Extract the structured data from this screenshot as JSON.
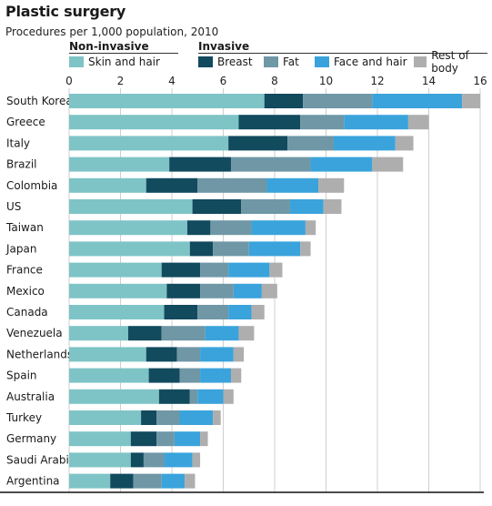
{
  "title": "Plastic surgery",
  "subtitle": "Procedures per 1,000 population, 2010",
  "legend": {
    "groups": [
      {
        "label": "Non-invasive",
        "items": [
          0
        ]
      },
      {
        "label": "Invasive",
        "items": [
          1,
          2,
          3,
          4
        ]
      }
    ]
  },
  "chart_data": {
    "type": "bar",
    "orientation": "horizontal",
    "stacked": true,
    "categories": [
      "South Korea",
      "Greece",
      "Italy",
      "Brazil",
      "Colombia",
      "US",
      "Taiwan",
      "Japan",
      "France",
      "Mexico",
      "Canada",
      "Venezuela",
      "Netherlands",
      "Spain",
      "Australia",
      "Turkey",
      "Germany",
      "Saudi Arabia",
      "Argentina"
    ],
    "series": [
      {
        "name": "Skin and hair",
        "color": "#7ec4c6",
        "values": [
          7.6,
          6.6,
          6.2,
          3.9,
          3.0,
          4.8,
          4.6,
          4.7,
          3.6,
          3.8,
          3.7,
          2.3,
          3.0,
          3.1,
          3.5,
          2.8,
          2.4,
          2.4,
          1.6
        ]
      },
      {
        "name": "Breast",
        "color": "#124a5e",
        "values": [
          1.5,
          2.4,
          2.3,
          2.4,
          2.0,
          1.9,
          0.9,
          0.9,
          1.5,
          1.3,
          1.3,
          1.3,
          1.2,
          1.2,
          1.2,
          0.6,
          1.0,
          0.5,
          0.9
        ]
      },
      {
        "name": "Fat",
        "color": "#6f97a6",
        "values": [
          2.7,
          1.7,
          1.8,
          3.1,
          2.7,
          1.9,
          1.6,
          1.4,
          1.1,
          1.3,
          1.2,
          1.7,
          0.9,
          0.8,
          0.3,
          0.9,
          0.7,
          0.8,
          1.1
        ]
      },
      {
        "name": "Face and hair",
        "color": "#3aa3dc",
        "values": [
          3.5,
          2.5,
          2.4,
          2.4,
          2.0,
          1.3,
          2.1,
          2.0,
          1.6,
          1.1,
          0.9,
          1.3,
          1.3,
          1.2,
          1.0,
          1.3,
          1.0,
          1.1,
          0.9
        ]
      },
      {
        "name": "Rest of body",
        "color": "#aeaeae",
        "values": [
          0.7,
          0.8,
          0.7,
          1.2,
          1.0,
          0.7,
          0.4,
          0.4,
          0.5,
          0.6,
          0.5,
          0.6,
          0.4,
          0.4,
          0.4,
          0.3,
          0.3,
          0.3,
          0.4
        ]
      }
    ],
    "xlim": [
      0,
      16
    ],
    "xticks": [
      0,
      2,
      4,
      6,
      8,
      10,
      12,
      14,
      16
    ],
    "grid": "vertical",
    "xaxis_position": "bottom",
    "legend_position": "top"
  }
}
